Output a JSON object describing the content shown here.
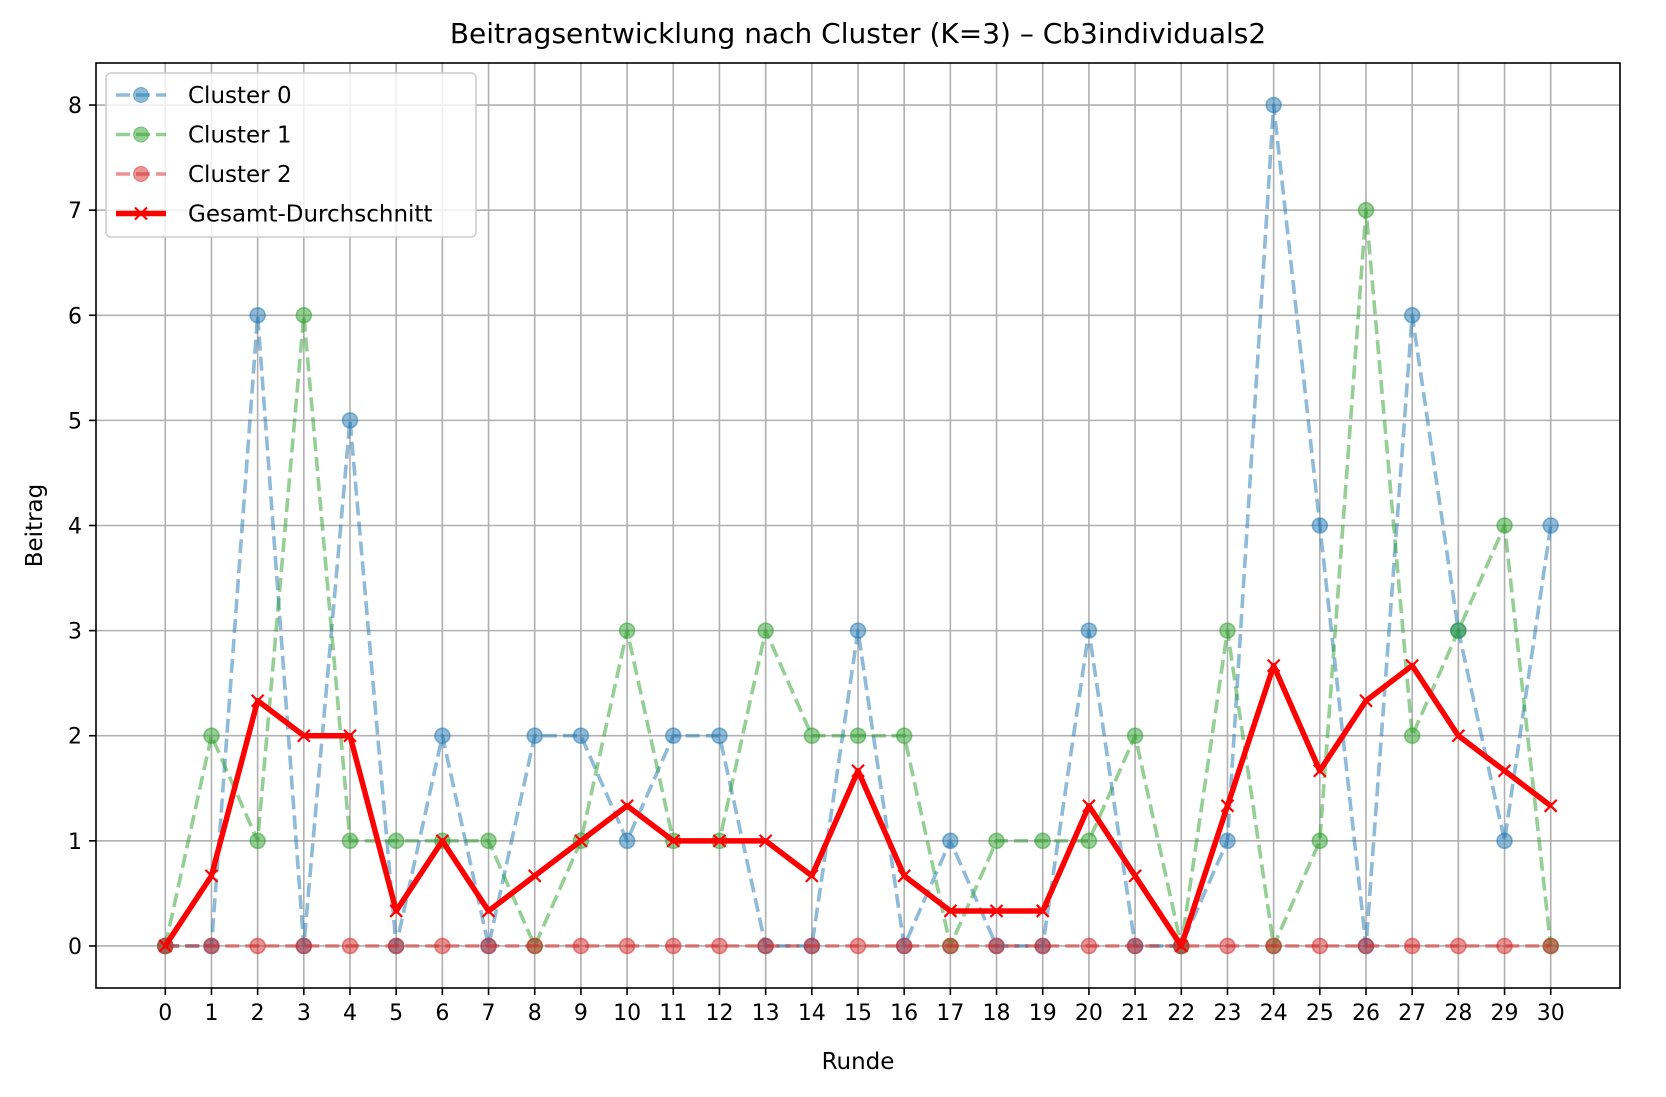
{
  "chart_data": {
    "type": "line",
    "title": "Beitragsentwicklung nach Cluster (K=3) – Cb3individuals2",
    "xlabel": "Runde",
    "ylabel": "Beitrag",
    "x": [
      0,
      1,
      2,
      3,
      4,
      5,
      6,
      7,
      8,
      9,
      10,
      11,
      12,
      13,
      14,
      15,
      16,
      17,
      18,
      19,
      20,
      21,
      22,
      23,
      24,
      25,
      26,
      27,
      28,
      29,
      30
    ],
    "xlim": [
      -1.5,
      31.5
    ],
    "ylim": [
      -0.4,
      8.4
    ],
    "yticks": [
      0,
      1,
      2,
      3,
      4,
      5,
      6,
      7,
      8
    ],
    "grid": true,
    "legend_position": "top-left",
    "series": [
      {
        "name": "Cluster 0",
        "color": "#1f77b4",
        "style": "dashed-circle-markers",
        "values": [
          0,
          0,
          6,
          0,
          5,
          0,
          2,
          0,
          2,
          2,
          1,
          2,
          2,
          0,
          0,
          3,
          0,
          1,
          0,
          0,
          3,
          0,
          0,
          1,
          8,
          4,
          0,
          6,
          3,
          1,
          4
        ]
      },
      {
        "name": "Cluster 1",
        "color": "#2ca02c",
        "style": "dashed-circle-markers",
        "values": [
          0,
          2,
          1,
          6,
          1,
          1,
          1,
          1,
          0,
          1,
          3,
          1,
          1,
          3,
          2,
          2,
          2,
          0,
          1,
          1,
          1,
          2,
          0,
          3,
          0,
          1,
          7,
          2,
          3,
          4,
          0
        ]
      },
      {
        "name": "Cluster 2",
        "color": "#d62728",
        "style": "dashed-circle-markers",
        "values": [
          0,
          0,
          0,
          0,
          0,
          0,
          0,
          0,
          0,
          0,
          0,
          0,
          0,
          0,
          0,
          0,
          0,
          0,
          0,
          0,
          0,
          0,
          0,
          0,
          0,
          0,
          0,
          0,
          0,
          0,
          0
        ]
      },
      {
        "name": "Gesamt-Durchschnitt",
        "color": "#ff0000",
        "style": "solid-x-markers",
        "values": [
          0,
          0.667,
          2.333,
          2,
          2,
          0.333,
          1,
          0.333,
          0.667,
          1,
          1.333,
          1,
          1,
          1,
          0.667,
          1.667,
          0.667,
          0.333,
          0.333,
          0.333,
          1.333,
          0.667,
          0,
          1.333,
          2.667,
          1.667,
          2.333,
          2.667,
          2,
          1.667,
          1.333
        ]
      }
    ]
  }
}
